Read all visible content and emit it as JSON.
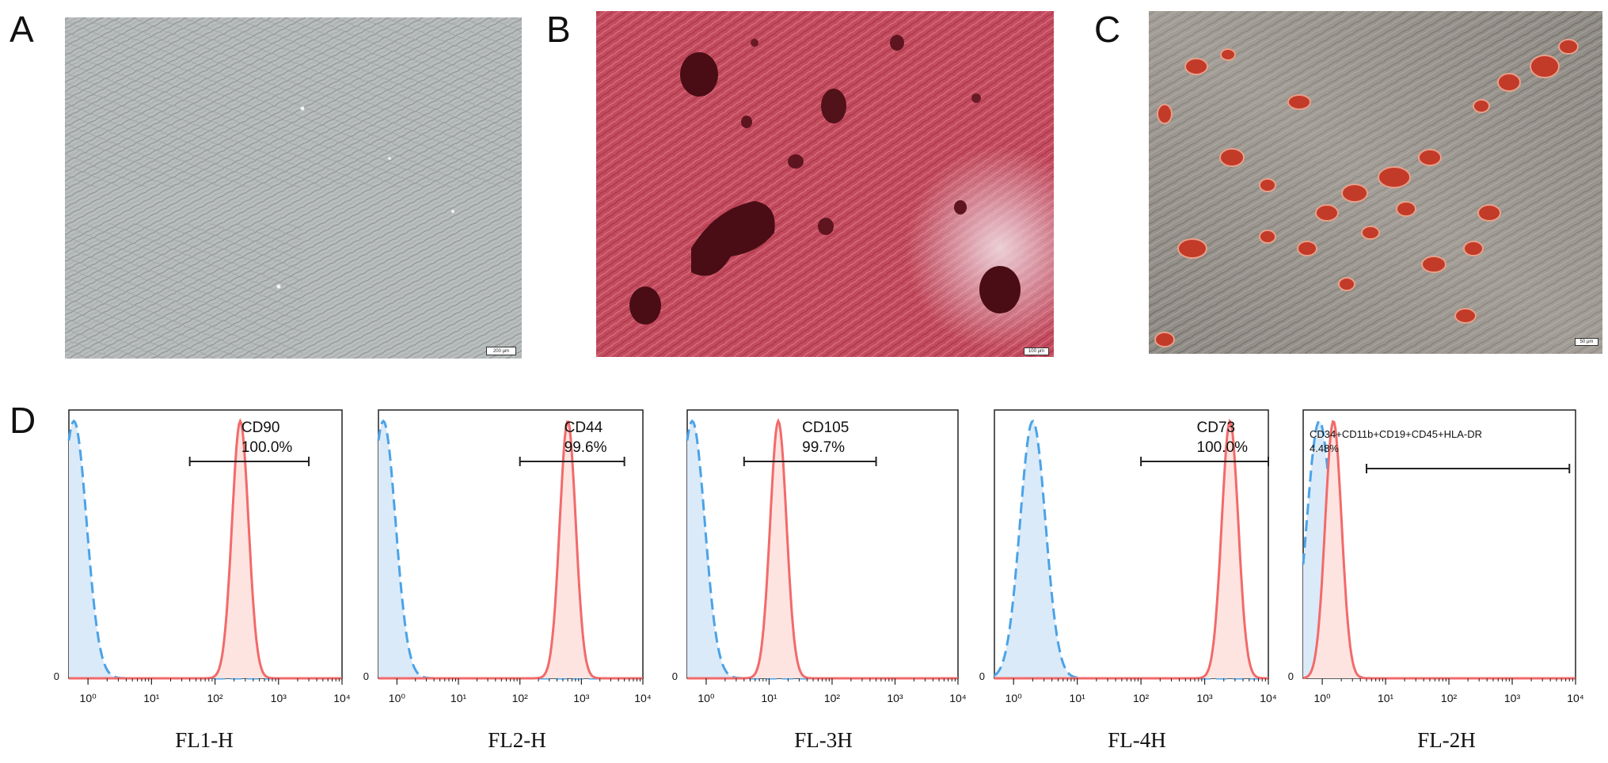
{
  "panel_labels": {
    "a": "A",
    "b": "B",
    "c": "C",
    "d": "D"
  },
  "micrographs": {
    "a": {
      "scale_bar": "200 µm"
    },
    "b": {
      "scale_bar": "100 µm"
    },
    "c": {
      "scale_bar": "50 µm"
    }
  },
  "colors": {
    "positive": "#f26a6a",
    "positive_fill": "#fde4e1",
    "control": "#4aa3e8",
    "control_fill": "#dbeaf8"
  },
  "chart_data": [
    {
      "type": "histogram",
      "xlabel": "FL1-H",
      "marker": "CD90",
      "percent": "100.0%",
      "xscale": "log",
      "xlim": [
        0.5,
        10000
      ],
      "x_ticks": [
        "10⁰",
        "10¹",
        "10²",
        "10³",
        "10⁴"
      ],
      "y_ticks": [
        "0"
      ],
      "control_peak": 0.6,
      "positive_peak": 250,
      "gate": [
        40,
        3000
      ]
    },
    {
      "type": "histogram",
      "xlabel": "FL2-H",
      "marker": "CD44",
      "percent": "99.6%",
      "xscale": "log",
      "xlim": [
        0.5,
        10000
      ],
      "x_ticks": [
        "10⁰",
        "10¹",
        "10²",
        "10³",
        "10⁴"
      ],
      "y_ticks": [
        "0"
      ],
      "control_peak": 0.6,
      "positive_peak": 600,
      "gate": [
        100,
        5000
      ]
    },
    {
      "type": "histogram",
      "xlabel": "FL-3H",
      "marker": "CD105",
      "percent": "99.7%",
      "xscale": "log",
      "xlim": [
        0.5,
        10000
      ],
      "x_ticks": [
        "10⁰",
        "10¹",
        "10²",
        "10³",
        "10⁴"
      ],
      "y_ticks": [
        "0"
      ],
      "control_peak": 0.6,
      "positive_peak": 14,
      "gate": [
        4,
        500
      ]
    },
    {
      "type": "histogram",
      "xlabel": "FL-4H",
      "marker": "CD73",
      "percent": "100.0%",
      "xscale": "log",
      "xlim": [
        0.5,
        10000
      ],
      "x_ticks": [
        "10⁰",
        "10¹",
        "10²",
        "10³",
        "10⁴"
      ],
      "y_ticks": [
        "0"
      ],
      "control_peak": 2,
      "positive_peak": 2500,
      "gate": [
        100,
        10000
      ]
    },
    {
      "type": "histogram",
      "xlabel": "FL-2H",
      "marker": "CD34+CD11b+CD19+CD45+HLA-DR",
      "percent": "4.48%",
      "xscale": "log",
      "xlim": [
        0.5,
        10000
      ],
      "x_ticks": [
        "10⁰",
        "10¹",
        "10²",
        "10³",
        "10⁴"
      ],
      "y_ticks": [
        "0"
      ],
      "control_peak": 0.9,
      "positive_peak": 1.5,
      "gate": [
        5,
        8000
      ]
    }
  ]
}
